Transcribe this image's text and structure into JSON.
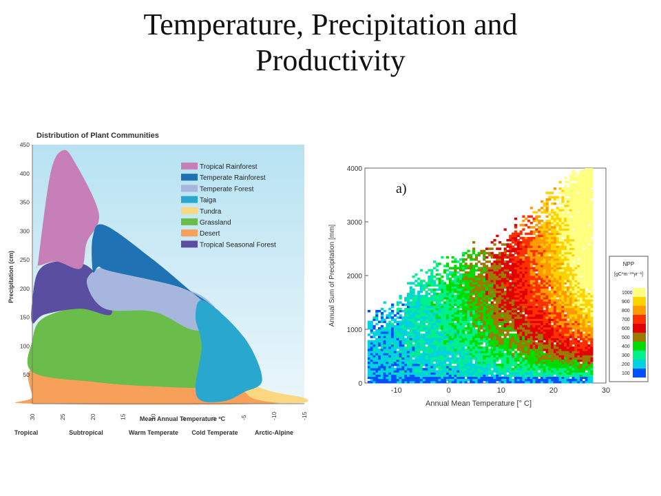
{
  "slide": {
    "title_line1": "Temperature, Precipitation and",
    "title_line2": "Productivity"
  },
  "chart_data": [
    {
      "type": "area",
      "title": "Distribution of Plant Communities",
      "xlabel": "Mean Annual Temperature ºC",
      "ylabel": "Precipitation (cm)",
      "x_ticks": [
        "30",
        "25",
        "20",
        "15",
        "10",
        "5",
        "0",
        "-5",
        "-10",
        "-15"
      ],
      "y_ticks": [
        "50",
        "100",
        "150",
        "200",
        "250",
        "300",
        "350",
        "400",
        "450"
      ],
      "x_direction": "reversed",
      "xlim": [
        30,
        -15
      ],
      "ylim": [
        0,
        450
      ],
      "zones": [
        "Tropical",
        "Subtropical",
        "Warm Temperate",
        "Cold Temperate",
        "Arctic-Alpine"
      ],
      "legend_position": "top-right",
      "legend": [
        {
          "name": "Tropical Rainforest",
          "color": "#c77fb8"
        },
        {
          "name": "Temperate Rainforest",
          "color": "#1f72b3"
        },
        {
          "name": "Temperate Forest",
          "color": "#a7b6dc"
        },
        {
          "name": "Taiga",
          "color": "#2aa7cf"
        },
        {
          "name": "Tundra",
          "color": "#fbd77f"
        },
        {
          "name": "Grassland",
          "color": "#6bbd4b"
        },
        {
          "name": "Desert",
          "color": "#f6a05a"
        },
        {
          "name": "Tropical Seasonal Forest",
          "color": "#5a4ea0"
        }
      ],
      "regions": [
        {
          "name": "Desert",
          "color": "#f6a05a",
          "points": [
            [
              30,
              12
            ],
            [
              30,
              60
            ],
            [
              20,
              40
            ],
            [
              10,
              32
            ],
            [
              0,
              30
            ],
            [
              -5,
              25
            ],
            [
              -8,
              15
            ],
            [
              -9,
              0
            ],
            [
              30,
              0
            ]
          ]
        },
        {
          "name": "Tundra",
          "color": "#fbd77f",
          "points": [
            [
              -5,
              35
            ],
            [
              -10,
              20
            ],
            [
              -15,
              10
            ],
            [
              -15,
              2
            ],
            [
              -10,
              2
            ],
            [
              -6,
              12
            ]
          ]
        },
        {
          "name": "Grassland",
          "color": "#6bbd4b",
          "points": [
            [
              30,
              110
            ],
            [
              28,
              150
            ],
            [
              20,
              170
            ],
            [
              10,
              160
            ],
            [
              3,
              140
            ],
            [
              0,
              120
            ],
            [
              -3,
              60
            ],
            [
              0,
              30
            ],
            [
              10,
              30
            ],
            [
              20,
              38
            ],
            [
              30,
              55
            ]
          ]
        },
        {
          "name": "Tropical Seasonal Forest",
          "color": "#5a4ea0",
          "points": [
            [
              30,
              180
            ],
            [
              29,
              230
            ],
            [
              26,
              247
            ],
            [
              21,
              240
            ],
            [
              18,
              200
            ],
            [
              17,
              155
            ],
            [
              22,
              165
            ],
            [
              28,
              155
            ],
            [
              30,
              140
            ]
          ]
        },
        {
          "name": "Temperate Forest",
          "color": "#a7b6dc",
          "points": [
            [
              21,
              210
            ],
            [
              19,
              235
            ],
            [
              16,
              230
            ],
            [
              5,
              200
            ],
            [
              1,
              180
            ],
            [
              -1,
              150
            ],
            [
              1,
              130
            ],
            [
              4,
              130
            ],
            [
              10,
              160
            ],
            [
              18,
              165
            ]
          ]
        },
        {
          "name": "Tropical Rainforest",
          "color": "#c77fb8",
          "points": [
            [
              29,
              250
            ],
            [
              27,
              400
            ],
            [
              25,
              440
            ],
            [
              23,
              420
            ],
            [
              19,
              330
            ],
            [
              21,
              280
            ],
            [
              22,
              235
            ],
            [
              26,
              247
            ],
            [
              29,
              240
            ]
          ]
        },
        {
          "name": "Temperate Rainforest",
          "color": "#1f72b3",
          "points": [
            [
              20,
              230
            ],
            [
              20,
              290
            ],
            [
              18,
              310
            ],
            [
              10,
              250
            ],
            [
              2,
              180
            ],
            [
              -1,
              160
            ],
            [
              5,
              200
            ],
            [
              17,
              230
            ],
            [
              19,
              238
            ]
          ]
        },
        {
          "name": "Taiga",
          "color": "#2aa7cf",
          "points": [
            [
              2,
              180
            ],
            [
              -2,
              150
            ],
            [
              -6,
              100
            ],
            [
              -8,
              40
            ],
            [
              -5,
              20
            ],
            [
              -2,
              5
            ],
            [
              2,
              5
            ],
            [
              3,
              30
            ],
            [
              2,
              100
            ],
            [
              3,
              150
            ]
          ]
        }
      ]
    },
    {
      "type": "heatmap",
      "panel_label": "a)",
      "xlabel": "Annual Mean Temperature [° C]",
      "ylabel": "Annual Sum of Precipitation [mm]",
      "x_ticks": [
        "-10",
        "0",
        "10",
        "20",
        "30"
      ],
      "y_ticks": [
        "0",
        "1000",
        "2000",
        "3000",
        "4000"
      ],
      "xlim": [
        -16,
        30
      ],
      "ylim": [
        0,
        4000
      ],
      "legend_title": "NPP",
      "legend_unit": "[gC*m⁻²*yr⁻¹]",
      "legend_position": "right",
      "color_scale": [
        {
          "label": "1000",
          "color": "#ffff80"
        },
        {
          "label": "900",
          "color": "#ffd200"
        },
        {
          "label": "800",
          "color": "#ff9a00"
        },
        {
          "label": "700",
          "color": "#ff3000"
        },
        {
          "label": "600",
          "color": "#e10000"
        },
        {
          "label": "500",
          "color": "#9c7a00"
        },
        {
          "label": "400",
          "color": "#00dc00"
        },
        {
          "label": "300",
          "color": "#00f08c"
        },
        {
          "label": "200",
          "color": "#00d2e0"
        },
        {
          "label": "100",
          "color": "#0050ff"
        }
      ]
    }
  ]
}
